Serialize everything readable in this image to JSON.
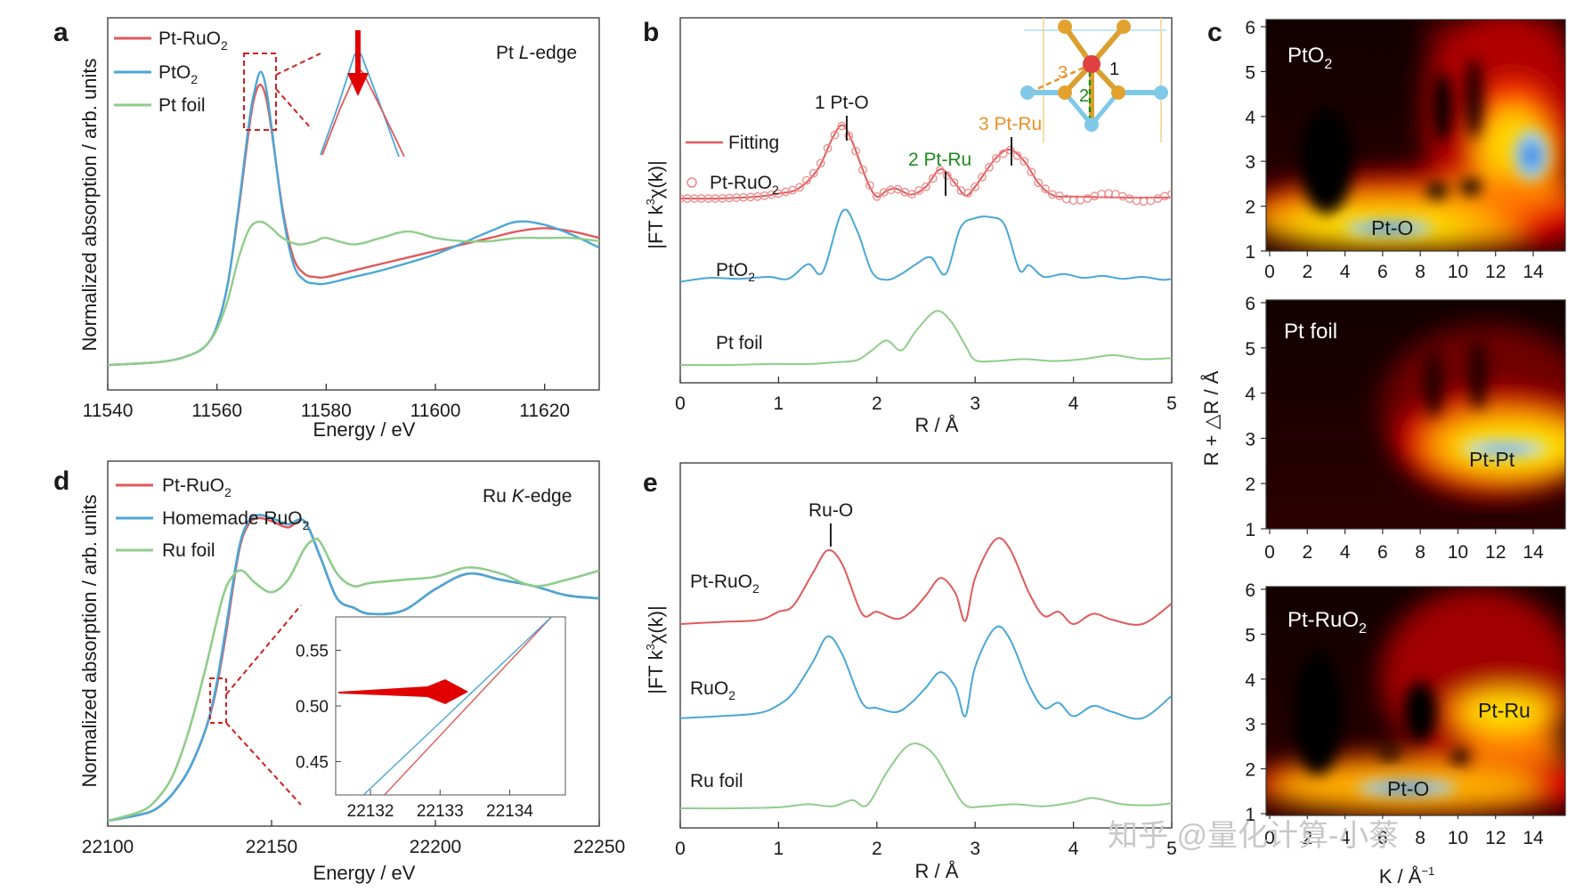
{
  "watermark": "知乎 @量化计算-小蔡",
  "colors": {
    "red": "#e05a5a",
    "blue": "#4aa7d6",
    "green": "#8fcd8a",
    "darkred": "#e00000",
    "orange": "#e8912a",
    "darkgreen": "#1e8a1e"
  },
  "chart_data": [
    {
      "id": "a",
      "panel_label": "a",
      "type": "line",
      "title": "Pt L-edge",
      "title_main": "Pt ",
      "title_italic": "L",
      "title_tail": "-edge",
      "xlabel": "Energy / eV",
      "ylabel": "Normalized absorption / arb. units",
      "xlim": [
        11540,
        11630
      ],
      "ylim": [
        0,
        1.0
      ],
      "xticks": [
        11540,
        11560,
        11580,
        11600,
        11620
      ],
      "legend": [
        {
          "main": "Pt-RuO",
          "sub": "2"
        },
        {
          "main": "PtO",
          "sub": "2"
        },
        {
          "main": "Pt foil",
          "sub": ""
        }
      ],
      "series": [
        {
          "name": "Pt-RuO2",
          "color": "red",
          "x": [
            11540,
            11550,
            11555,
            11558,
            11560,
            11562,
            11564,
            11566,
            11567,
            11568,
            11569,
            11570,
            11572,
            11574,
            11576,
            11578,
            11580,
            11585,
            11590,
            11600,
            11610,
            11615,
            11620,
            11625,
            11630
          ],
          "y": [
            0.0,
            0.01,
            0.03,
            0.06,
            0.12,
            0.25,
            0.48,
            0.74,
            0.83,
            0.86,
            0.82,
            0.72,
            0.48,
            0.33,
            0.28,
            0.27,
            0.27,
            0.29,
            0.31,
            0.35,
            0.39,
            0.41,
            0.42,
            0.41,
            0.39
          ]
        },
        {
          "name": "PtO2",
          "color": "blue",
          "x": [
            11540,
            11550,
            11555,
            11558,
            11560,
            11562,
            11564,
            11566,
            11567,
            11568,
            11569,
            11570,
            11572,
            11574,
            11576,
            11578,
            11580,
            11585,
            11590,
            11600,
            11610,
            11615,
            11620,
            11625,
            11630
          ],
          "y": [
            0.0,
            0.01,
            0.03,
            0.06,
            0.12,
            0.25,
            0.49,
            0.76,
            0.85,
            0.9,
            0.85,
            0.73,
            0.47,
            0.31,
            0.26,
            0.25,
            0.25,
            0.27,
            0.29,
            0.34,
            0.41,
            0.44,
            0.43,
            0.4,
            0.36
          ]
        },
        {
          "name": "Pt foil",
          "color": "green",
          "x": [
            11540,
            11550,
            11555,
            11558,
            11560,
            11562,
            11564,
            11566,
            11568,
            11570,
            11572,
            11575,
            11578,
            11580,
            11585,
            11590,
            11595,
            11600,
            11605,
            11610,
            11615,
            11620,
            11625,
            11630
          ],
          "y": [
            0.0,
            0.01,
            0.03,
            0.06,
            0.11,
            0.2,
            0.33,
            0.42,
            0.44,
            0.42,
            0.39,
            0.37,
            0.38,
            0.39,
            0.37,
            0.39,
            0.41,
            0.39,
            0.38,
            0.38,
            0.39,
            0.39,
            0.39,
            0.38
          ]
        }
      ]
    },
    {
      "id": "b",
      "panel_label": "b",
      "type": "line",
      "xlabel": "R / Å",
      "ylabel_main": "|FT k",
      "ylabel_sup": "3",
      "ylabel_tail": "χ(k)|",
      "xlim": [
        0,
        5
      ],
      "xticks": [
        0,
        1,
        2,
        3,
        4,
        5
      ],
      "legend": [
        {
          "main": "Fitting",
          "sub": ""
        },
        {
          "main": "Pt-RuO",
          "sub": "2"
        }
      ],
      "labels": [
        {
          "main": "PtO",
          "sub": "2"
        },
        {
          "main": "Pt foil",
          "sub": ""
        }
      ],
      "annotations": [
        "1 Pt-O",
        "2 Pt-Ru",
        "3 Pt-Ru"
      ],
      "inset_labels": [
        "3",
        "2",
        "1"
      ],
      "series": [
        {
          "name": "Pt-RuO2 fit",
          "color": "red",
          "offset": 1.7,
          "x": [
            0,
            0.4,
            0.8,
            1.0,
            1.2,
            1.4,
            1.55,
            1.65,
            1.75,
            1.9,
            2.0,
            2.1,
            2.2,
            2.35,
            2.5,
            2.65,
            2.8,
            2.9,
            3.0,
            3.2,
            3.35,
            3.5,
            3.65,
            3.8,
            4.0,
            4.5,
            5.0
          ],
          "y": [
            0.0,
            0.0,
            0.02,
            0.05,
            0.1,
            0.3,
            0.62,
            0.75,
            0.58,
            0.18,
            0.02,
            0.08,
            0.1,
            0.04,
            0.12,
            0.3,
            0.15,
            0.03,
            0.12,
            0.4,
            0.5,
            0.38,
            0.15,
            0.03,
            0.02,
            0.01,
            0.01
          ]
        },
        {
          "name": "PtO2",
          "color": "blue",
          "offset": 0.85,
          "x": [
            0,
            0.3,
            0.6,
            0.9,
            1.1,
            1.3,
            1.45,
            1.65,
            1.8,
            1.95,
            2.1,
            2.25,
            2.4,
            2.55,
            2.7,
            2.85,
            3.0,
            3.15,
            3.3,
            3.45,
            3.55,
            3.7,
            3.9,
            4.1,
            4.3,
            4.5,
            4.7,
            4.9,
            5.0
          ],
          "y": [
            0.0,
            0.04,
            0.03,
            0.05,
            0.03,
            0.18,
            0.1,
            0.72,
            0.52,
            0.1,
            0.02,
            0.08,
            0.18,
            0.25,
            0.08,
            0.55,
            0.65,
            0.66,
            0.58,
            0.12,
            0.17,
            0.05,
            0.08,
            0.04,
            0.06,
            0.03,
            0.05,
            0.02,
            0.03
          ]
        },
        {
          "name": "Pt foil",
          "color": "green",
          "offset": 0.0,
          "x": [
            0,
            0.5,
            0.9,
            1.3,
            1.6,
            1.8,
            1.95,
            2.1,
            2.25,
            2.4,
            2.6,
            2.75,
            2.9,
            3.0,
            3.2,
            3.5,
            3.8,
            4.1,
            4.4,
            4.7,
            5.0
          ],
          "y": [
            0.0,
            0.0,
            0.01,
            0.01,
            0.03,
            0.05,
            0.15,
            0.25,
            0.15,
            0.35,
            0.55,
            0.45,
            0.2,
            0.05,
            0.04,
            0.06,
            0.04,
            0.06,
            0.1,
            0.06,
            0.07
          ]
        }
      ]
    },
    {
      "id": "c",
      "panel_label": "c",
      "type": "heatmap",
      "ylabel": "R + △R / Å",
      "xlabel_main": "K / Å",
      "xlabel_sup": "−1",
      "xticks": [
        0,
        2,
        4,
        6,
        8,
        10,
        12,
        14
      ],
      "yticks": [
        1,
        2,
        3,
        4,
        5,
        6
      ],
      "maps": [
        {
          "title_main": "PtO",
          "title_sub": "2",
          "labels": [
            "Pt-O"
          ]
        },
        {
          "title_main": "Pt foil",
          "title_sub": "",
          "labels": [
            "Pt-Pt"
          ]
        },
        {
          "title_main": "Pt-RuO",
          "title_sub": "2",
          "labels": [
            "Pt-Ru",
            "Pt-O"
          ]
        }
      ]
    },
    {
      "id": "d",
      "panel_label": "d",
      "type": "line",
      "title_main": "Ru ",
      "title_italic": "K",
      "title_tail": "-edge",
      "xlabel": "Energy / eV",
      "ylabel": "Normalized absorption / arb. units",
      "xlim": [
        22100,
        22250
      ],
      "ylim": [
        0,
        1.0
      ],
      "xticks": [
        22100,
        22150,
        22200,
        22250
      ],
      "legend": [
        {
          "main": "Pt-RuO",
          "sub": "2"
        },
        {
          "main": "Homemade RuO",
          "sub": "2"
        },
        {
          "main": "Ru foil",
          "sub": ""
        }
      ],
      "series": [
        {
          "name": "Pt-RuO2",
          "color": "red",
          "x": [
            22100,
            22110,
            22115,
            22120,
            22125,
            22130,
            22133,
            22136,
            22140,
            22143,
            22146,
            22150,
            22155,
            22160,
            22165,
            22170,
            22175,
            22180,
            22190,
            22200,
            22210,
            22220,
            22230,
            22240,
            22250
          ],
          "y": [
            0.0,
            0.02,
            0.04,
            0.09,
            0.17,
            0.3,
            0.42,
            0.6,
            0.87,
            0.96,
            0.98,
            0.97,
            0.95,
            0.97,
            0.85,
            0.72,
            0.69,
            0.67,
            0.68,
            0.75,
            0.8,
            0.78,
            0.76,
            0.73,
            0.72
          ]
        },
        {
          "name": "Homemade RuO2",
          "color": "blue",
          "x": [
            22100,
            22110,
            22115,
            22120,
            22125,
            22130,
            22133,
            22136,
            22140,
            22143,
            22146,
            22150,
            22155,
            22160,
            22165,
            22170,
            22175,
            22180,
            22190,
            22200,
            22210,
            22220,
            22230,
            22240,
            22250
          ],
          "y": [
            0.0,
            0.02,
            0.04,
            0.09,
            0.17,
            0.3,
            0.43,
            0.62,
            0.88,
            0.97,
            0.99,
            0.98,
            0.96,
            0.97,
            0.85,
            0.72,
            0.69,
            0.67,
            0.68,
            0.75,
            0.8,
            0.78,
            0.76,
            0.73,
            0.72
          ]
        },
        {
          "name": "Ru foil",
          "color": "green",
          "x": [
            22100,
            22110,
            22115,
            22120,
            22125,
            22130,
            22135,
            22138,
            22141,
            22145,
            22150,
            22155,
            22160,
            22163,
            22165,
            22170,
            22175,
            22180,
            22190,
            22200,
            22210,
            22220,
            22230,
            22240,
            22250
          ],
          "y": [
            0.0,
            0.03,
            0.07,
            0.15,
            0.3,
            0.5,
            0.72,
            0.79,
            0.81,
            0.77,
            0.74,
            0.78,
            0.88,
            0.91,
            0.9,
            0.8,
            0.76,
            0.77,
            0.78,
            0.79,
            0.82,
            0.8,
            0.76,
            0.78,
            0.81
          ]
        }
      ],
      "inset": {
        "xlim": [
          22131.5,
          22134.8
        ],
        "ylim": [
          0.42,
          0.58
        ],
        "xticks": [
          22132,
          22133,
          22134
        ],
        "yticks": [
          0.45,
          0.5,
          0.55
        ],
        "series": [
          {
            "name": "Pt-RuO2",
            "color": "red",
            "x": [
              22132.2,
              22134.6
            ],
            "y": [
              0.42,
              0.58
            ]
          },
          {
            "name": "Homemade RuO2",
            "color": "blue",
            "x": [
              22131.9,
              22134.6
            ],
            "y": [
              0.42,
              0.58
            ]
          }
        ]
      }
    },
    {
      "id": "e",
      "panel_label": "e",
      "type": "line",
      "xlabel": "R / Å",
      "ylabel_main": "|FT k",
      "ylabel_sup": "3",
      "ylabel_tail": "χ(k)|",
      "xlim": [
        0,
        5
      ],
      "xticks": [
        0,
        1,
        2,
        3,
        4,
        5
      ],
      "annotations": [
        "Ru-O"
      ],
      "labels": [
        {
          "main": "Pt-RuO",
          "sub": "2"
        },
        {
          "main": "RuO",
          "sub": "2"
        },
        {
          "main": "Ru foil",
          "sub": ""
        }
      ],
      "series": [
        {
          "name": "Pt-RuO2",
          "color": "red",
          "offset": 1.8,
          "x": [
            0,
            0.4,
            0.8,
            1.0,
            1.15,
            1.35,
            1.5,
            1.65,
            1.85,
            2.0,
            2.2,
            2.35,
            2.5,
            2.65,
            2.8,
            2.9,
            3.0,
            3.2,
            3.35,
            3.55,
            3.7,
            3.85,
            4.0,
            4.2,
            4.4,
            4.7,
            5.0
          ],
          "y": [
            0.0,
            0.02,
            0.04,
            0.12,
            0.18,
            0.5,
            0.72,
            0.58,
            0.1,
            0.12,
            0.05,
            0.12,
            0.28,
            0.45,
            0.3,
            0.03,
            0.45,
            0.82,
            0.74,
            0.3,
            0.08,
            0.12,
            0.0,
            0.1,
            0.04,
            0.0,
            0.2
          ]
        },
        {
          "name": "RuO2",
          "color": "blue",
          "offset": 0.88,
          "x": [
            0,
            0.4,
            0.8,
            1.0,
            1.15,
            1.35,
            1.5,
            1.65,
            1.85,
            2.0,
            2.2,
            2.35,
            2.5,
            2.65,
            2.8,
            2.9,
            3.0,
            3.2,
            3.35,
            3.55,
            3.7,
            3.85,
            4.0,
            4.2,
            4.4,
            4.7,
            5.0
          ],
          "y": [
            0.0,
            0.02,
            0.05,
            0.13,
            0.25,
            0.55,
            0.8,
            0.62,
            0.15,
            0.1,
            0.06,
            0.15,
            0.3,
            0.45,
            0.3,
            0.02,
            0.5,
            0.88,
            0.78,
            0.32,
            0.1,
            0.15,
            0.02,
            0.12,
            0.06,
            0.0,
            0.22
          ]
        },
        {
          "name": "Ru foil",
          "color": "green",
          "offset": 0.0,
          "x": [
            0,
            0.5,
            1.0,
            1.3,
            1.55,
            1.75,
            1.9,
            2.1,
            2.3,
            2.45,
            2.6,
            2.75,
            2.9,
            3.1,
            3.4,
            3.7,
            4.0,
            4.2,
            4.5,
            4.8,
            5.0
          ],
          "y": [
            0.0,
            0.0,
            0.01,
            0.04,
            0.02,
            0.08,
            0.03,
            0.35,
            0.6,
            0.62,
            0.5,
            0.25,
            0.03,
            0.02,
            0.04,
            0.02,
            0.06,
            0.1,
            0.04,
            0.03,
            0.05
          ]
        }
      ]
    }
  ]
}
